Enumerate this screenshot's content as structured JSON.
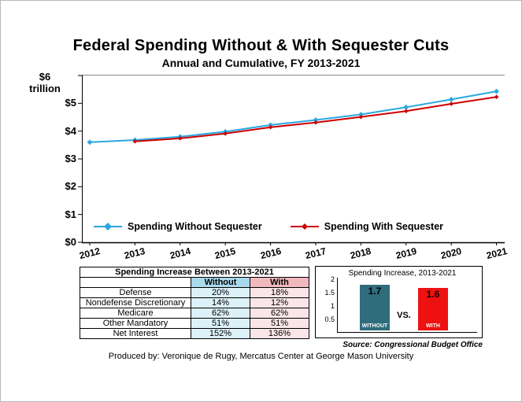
{
  "page": {
    "source_note": "Source: Congressional Budget Office",
    "credit": "Produced by: Veronique de Rugy, Mercatus Center at George Mason University"
  },
  "colors": {
    "without_line": "#29A8DF",
    "with_line": "#CC0000",
    "without_bar": "#2F6C7C",
    "with_bar": "#EE1111",
    "without_header_bg": "#A9D9EC",
    "with_header_bg": "#F0B9BE",
    "without_cell_bg": "#DDF1F9",
    "with_cell_bg": "#FAE6E8"
  },
  "chart_data": [
    {
      "id": "line-chart",
      "type": "line",
      "title": "Federal Spending Without & With Sequester Cuts",
      "subtitle": "Annual and Cumulative, FY 2013-2021",
      "x_ticks": [
        2012,
        2013,
        2014,
        2015,
        2016,
        2017,
        2018,
        2019,
        2020,
        2021
      ],
      "y_ticks": [
        "$6",
        "$5",
        "$4",
        "$3",
        "$2",
        "$1",
        "$0"
      ],
      "y_axis_unit_label": "trillion",
      "ylim": [
        0,
        6
      ],
      "grid": false,
      "legend_position": "inside-bottom",
      "series": [
        {
          "name": "Spending Without Sequester",
          "color": "#29A8DF",
          "x": [
            2012,
            2013,
            2014,
            2015,
            2016,
            2017,
            2018,
            2019,
            2020,
            2021
          ],
          "values": [
            3.6,
            3.68,
            3.8,
            3.98,
            4.22,
            4.4,
            4.6,
            4.86,
            5.14,
            5.43
          ]
        },
        {
          "name": "Spending With Sequester",
          "color": "#CC0000",
          "x": [
            2013,
            2014,
            2015,
            2016,
            2017,
            2018,
            2019,
            2020,
            2021
          ],
          "values": [
            3.63,
            3.74,
            3.91,
            4.14,
            4.31,
            4.51,
            4.72,
            4.98,
            5.23
          ]
        }
      ]
    },
    {
      "id": "increase-table",
      "type": "table",
      "title": "Spending Increase Between 2013-2021",
      "columns": [
        "",
        "Without",
        "With"
      ],
      "rows": [
        [
          "Defense",
          "20%",
          "18%"
        ],
        [
          "Nondefense Discretionary",
          "14%",
          "12%"
        ],
        [
          "Medicare",
          "62%",
          "62%"
        ],
        [
          "Other Mandatory",
          "51%",
          "51%"
        ],
        [
          "Net Interest",
          "152%",
          "136%"
        ]
      ]
    },
    {
      "id": "increase-bars",
      "type": "bar",
      "title": "Spending Increase, 2013-2021",
      "categories": [
        "WITHOUT",
        "WITH"
      ],
      "values": [
        1.7,
        1.6
      ],
      "value_labels": [
        "1.7",
        "1.6"
      ],
      "separator_label": "VS.",
      "y_ticks": [
        2,
        1.5,
        1,
        0.5
      ],
      "ylim": [
        0,
        2
      ],
      "colors": [
        "#2F6C7C",
        "#EE1111"
      ]
    }
  ]
}
